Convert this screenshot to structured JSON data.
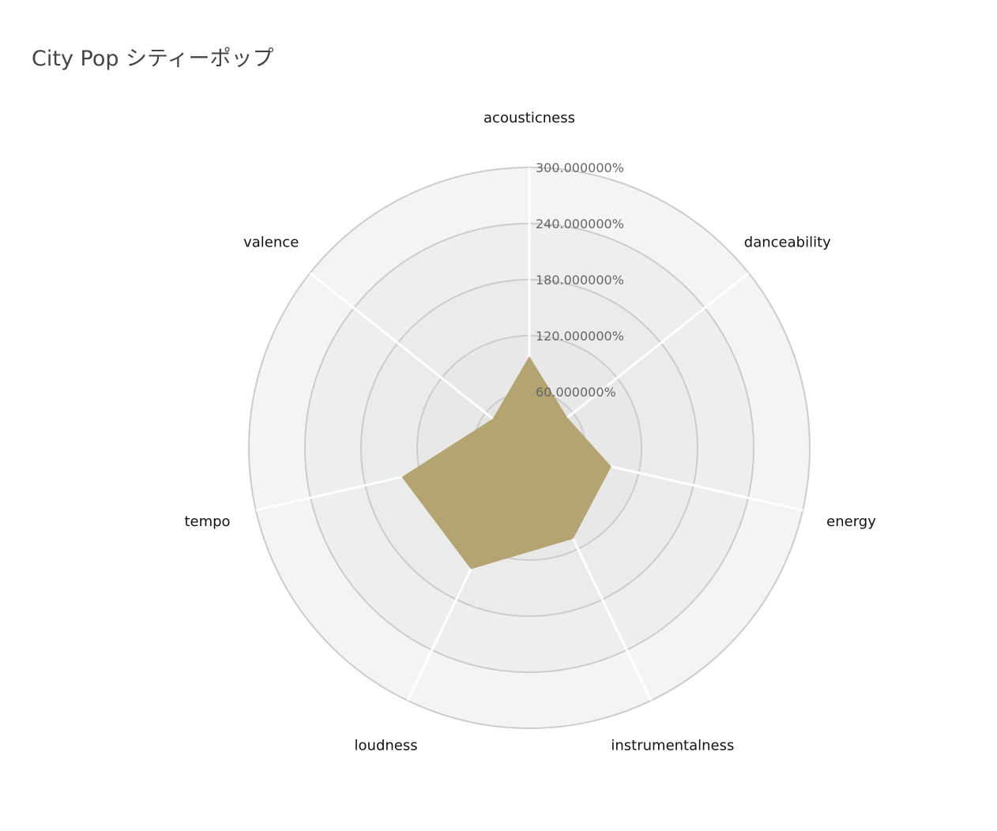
{
  "chart_data": {
    "type": "radar",
    "title": "City Pop シティーポップ",
    "axes": [
      "acousticness",
      "danceability",
      "energy",
      "instrumentalness",
      "loudness",
      "tempo",
      "valence"
    ],
    "radial_range": [
      0,
      300
    ],
    "radial_ticks": [
      "60.000000%",
      "120.000000%",
      "180.000000%",
      "240.000000%",
      "300.000000%"
    ],
    "radial_tick_values": [
      60,
      120,
      180,
      240,
      300
    ],
    "series": [
      {
        "values": [
          98,
          52,
          90,
          108,
          144,
          140,
          50
        ],
        "color": "#b0a06c"
      }
    ],
    "grid": true,
    "ring_colors": [
      "#e4e4e4",
      "#e8e8e8",
      "#ebebeb",
      "#eeeeee",
      "#f4f4f4"
    ]
  }
}
